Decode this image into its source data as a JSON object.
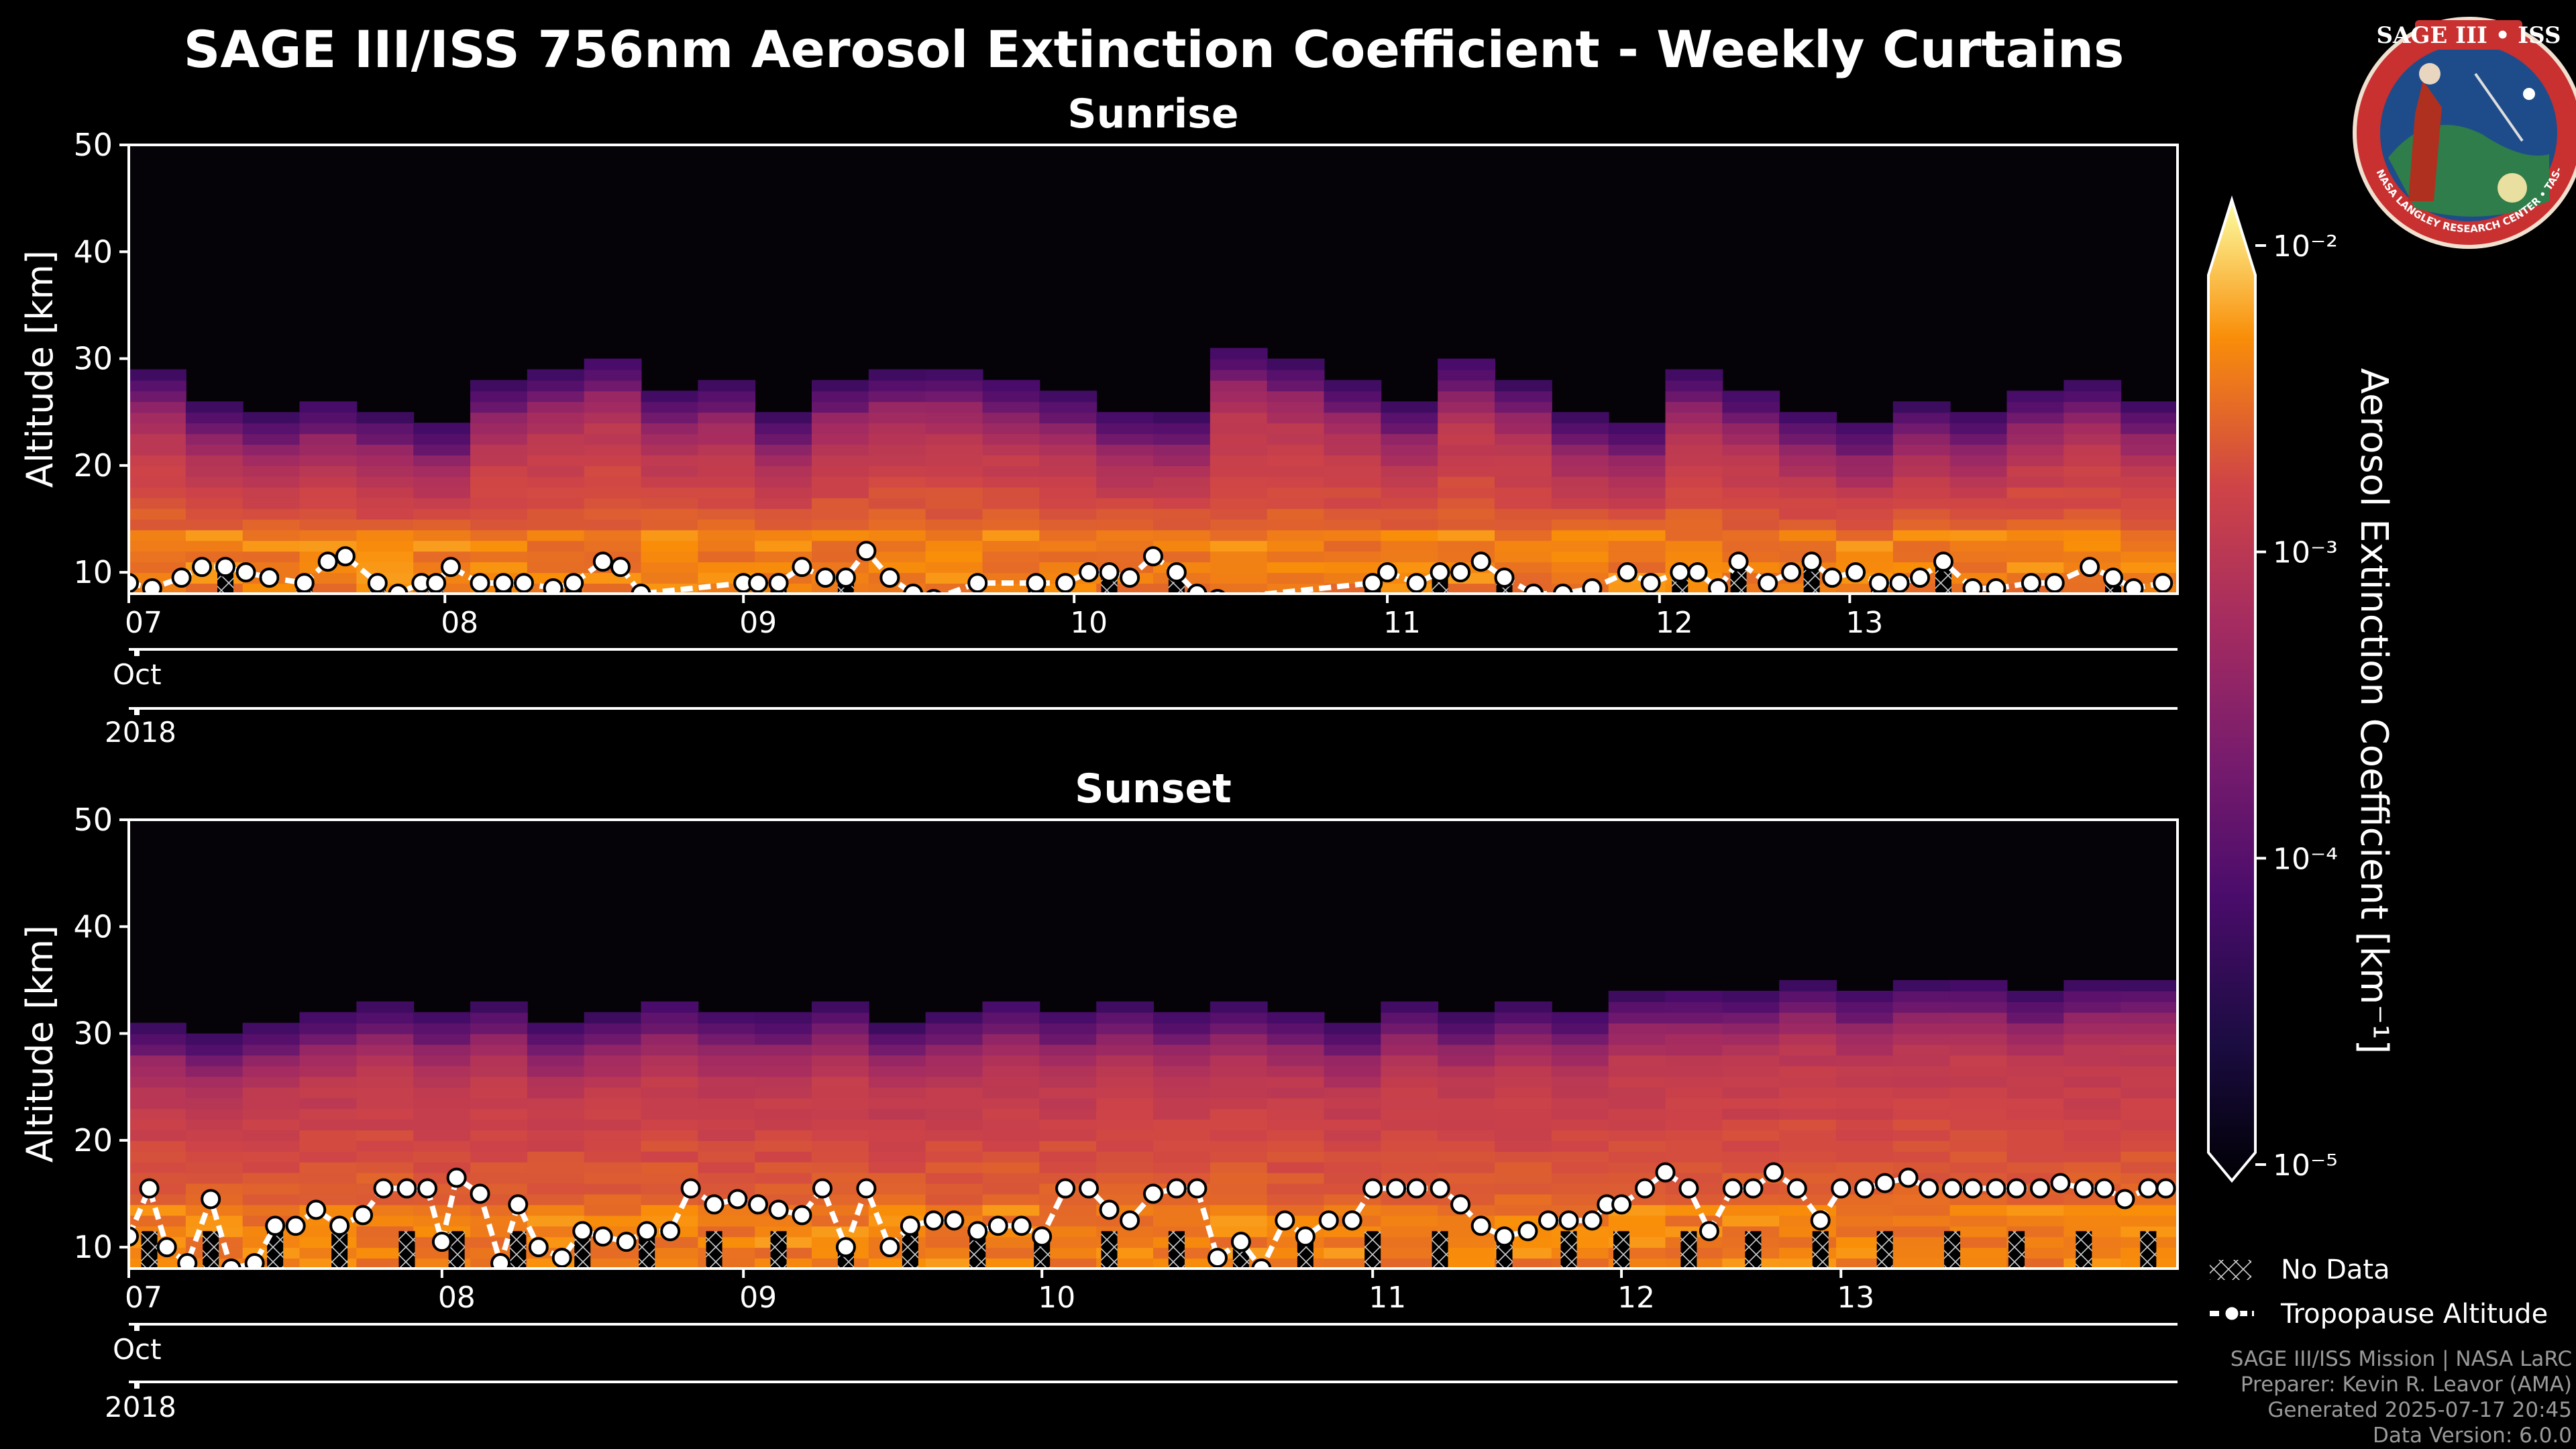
{
  "colors": {
    "background": "#000000",
    "tropopause": "#ffffff",
    "badge_ring": "#d43a3a",
    "badge_fill": "#1e4c8a"
  },
  "chart_data": [
    {
      "type": "heatmap",
      "title": "Sunrise",
      "ylabel": "Altitude [km]",
      "ylim": [
        8,
        50
      ],
      "yticks": [
        10,
        20,
        30,
        40,
        50
      ],
      "xlim": [
        0,
        7
      ],
      "xticks": [
        {
          "x": 0.0,
          "label": "07"
        },
        {
          "x": 1.08,
          "label": "08"
        },
        {
          "x": 2.1,
          "label": "09"
        },
        {
          "x": 3.23,
          "label": "10"
        },
        {
          "x": 4.3,
          "label": "11"
        },
        {
          "x": 5.23,
          "label": "12"
        },
        {
          "x": 5.88,
          "label": "13"
        }
      ],
      "month_label": "Oct",
      "year_label": "2018",
      "aerosol_top_km": [
        26,
        23,
        22,
        23,
        22,
        21,
        25,
        26,
        27,
        24,
        25,
        22,
        25,
        26,
        26,
        25,
        24,
        22,
        22,
        28,
        27,
        25,
        23,
        27,
        25,
        22,
        21,
        26,
        24,
        22,
        21,
        23,
        22,
        24,
        25,
        23
      ],
      "tropopause": {
        "x": [
          0.0,
          0.08,
          0.18,
          0.25,
          0.33,
          0.4,
          0.48,
          0.6,
          0.68,
          0.74,
          0.85,
          0.92,
          1.0,
          1.05,
          1.1,
          1.2,
          1.28,
          1.35,
          1.45,
          1.52,
          1.62,
          1.68,
          1.75,
          2.1,
          2.15,
          2.22,
          2.3,
          2.38,
          2.45,
          2.52,
          2.6,
          2.68,
          2.75,
          2.9,
          3.1,
          3.2,
          3.28,
          3.35,
          3.42,
          3.5,
          3.58,
          3.65,
          3.72,
          4.25,
          4.3,
          4.4,
          4.48,
          4.55,
          4.62,
          4.7,
          4.8,
          4.9,
          5.0,
          5.12,
          5.2,
          5.3,
          5.36,
          5.43,
          5.5,
          5.6,
          5.68,
          5.75,
          5.82,
          5.9,
          5.98,
          6.05,
          6.12,
          6.2,
          6.3,
          6.38,
          6.5,
          6.58,
          6.7,
          6.78,
          6.85,
          6.95
        ],
        "y": [
          9,
          8.5,
          9.5,
          10.5,
          10.5,
          10,
          9.5,
          9,
          11,
          11.5,
          9,
          8,
          9,
          9,
          10.5,
          9,
          9,
          9,
          8.5,
          9,
          11,
          10.5,
          8,
          9,
          9,
          9,
          10.5,
          9.5,
          9.5,
          12,
          9.5,
          8,
          7.5,
          9,
          9,
          9,
          10,
          10,
          9.5,
          11.5,
          10,
          8,
          7.5,
          9,
          10,
          9,
          10,
          10,
          11,
          9.5,
          8,
          8,
          8.5,
          10,
          9,
          10,
          10,
          8.5,
          11,
          9,
          10,
          11,
          9.5,
          10,
          9,
          9,
          9.5,
          11,
          8.5,
          8.5,
          9,
          9,
          10.5,
          9.5,
          8.5,
          9
        ]
      }
    },
    {
      "type": "heatmap",
      "title": "Sunset",
      "ylabel": "Altitude [km]",
      "ylim": [
        8,
        50
      ],
      "yticks": [
        10,
        20,
        30,
        40,
        50
      ],
      "xlim": [
        0,
        7
      ],
      "xticks": [
        {
          "x": 0.0,
          "label": "07"
        },
        {
          "x": 1.07,
          "label": "08"
        },
        {
          "x": 2.1,
          "label": "09"
        },
        {
          "x": 3.12,
          "label": "10"
        },
        {
          "x": 4.25,
          "label": "11"
        },
        {
          "x": 5.1,
          "label": "12"
        },
        {
          "x": 5.85,
          "label": "13"
        }
      ],
      "month_label": "Oct",
      "year_label": "2018",
      "aerosol_top_km": [
        28,
        27,
        28,
        29,
        30,
        29,
        30,
        28,
        29,
        30,
        29,
        29,
        30,
        28,
        29,
        30,
        29,
        30,
        29,
        30,
        29,
        28,
        30,
        29,
        30,
        29,
        31,
        31,
        31,
        32,
        31,
        32,
        32,
        31,
        32,
        32
      ],
      "tropopause": {
        "x": [
          0.0,
          0.07,
          0.13,
          0.2,
          0.28,
          0.35,
          0.43,
          0.5,
          0.57,
          0.64,
          0.72,
          0.8,
          0.87,
          0.95,
          1.02,
          1.07,
          1.12,
          1.2,
          1.27,
          1.33,
          1.4,
          1.48,
          1.55,
          1.62,
          1.7,
          1.77,
          1.85,
          1.92,
          2.0,
          2.08,
          2.15,
          2.22,
          2.3,
          2.37,
          2.45,
          2.52,
          2.6,
          2.67,
          2.75,
          2.82,
          2.9,
          2.97,
          3.05,
          3.12,
          3.2,
          3.28,
          3.35,
          3.42,
          3.5,
          3.58,
          3.65,
          3.72,
          3.8,
          3.87,
          3.95,
          4.02,
          4.1,
          4.18,
          4.25,
          4.33,
          4.4,
          4.48,
          4.55,
          4.62,
          4.7,
          4.78,
          4.85,
          4.92,
          5.0,
          5.05,
          5.1,
          5.18,
          5.25,
          5.33,
          5.4,
          5.48,
          5.55,
          5.62,
          5.7,
          5.78,
          5.85,
          5.93,
          6.0,
          6.08,
          6.15,
          6.23,
          6.3,
          6.38,
          6.45,
          6.53,
          6.6,
          6.68,
          6.75,
          6.82,
          6.9,
          6.96
        ],
        "y": [
          11,
          15.5,
          10,
          8.5,
          14.5,
          8,
          8.5,
          12,
          12,
          13.5,
          12,
          13,
          15.5,
          15.5,
          15.5,
          10.5,
          16.5,
          15,
          8.5,
          14,
          10,
          9,
          11.5,
          11,
          10.5,
          11.5,
          11.5,
          15.5,
          14,
          14.5,
          14,
          13.5,
          13,
          15.5,
          10,
          15.5,
          10,
          12,
          12.5,
          12.5,
          11.5,
          12,
          12,
          11,
          15.5,
          15.5,
          13.5,
          12.5,
          15,
          15.5,
          15.5,
          9,
          10.5,
          8,
          12.5,
          11,
          12.5,
          12.5,
          15.5,
          15.5,
          15.5,
          15.5,
          14,
          12,
          11,
          11.5,
          12.5,
          12.5,
          12.5,
          14,
          14,
          15.5,
          17,
          15.5,
          11.5,
          15.5,
          15.5,
          17,
          15.5,
          12.5,
          15.5,
          15.5,
          16,
          16.5,
          15.5,
          15.5,
          15.5,
          15.5,
          15.5,
          15.5,
          16,
          15.5,
          15.5,
          14.5,
          15.5,
          15.5
        ]
      }
    }
  ],
  "figure": {
    "title": "SAGE III/ISS 756nm Aerosol Extinction Coefficient - Weekly Curtains",
    "colorbar": {
      "label": "Aerosol Extinction Coefficient [km⁻¹]",
      "ticks": [
        "10⁻²",
        "10⁻³",
        "10⁻⁴",
        "10⁻⁵"
      ],
      "tick_values": [
        -2,
        -3,
        -4,
        -5
      ],
      "range": [
        -5,
        -2
      ],
      "scale": "log10"
    },
    "legend": {
      "no_data": "No Data",
      "tropopause": "Tropopause Altitude"
    },
    "footer": [
      "SAGE III/ISS Mission | NASA LaRC",
      "Preparer: Kevin R. Leavor (AMA)",
      "Generated 2025-07-17 20:45",
      "Data Version: 6.0.0"
    ],
    "badge": {
      "title": "SAGE III • ISS",
      "ring_text": "BALL • NASA LANGLEY RESEARCH CENTER • TAS-I • ESA"
    }
  }
}
